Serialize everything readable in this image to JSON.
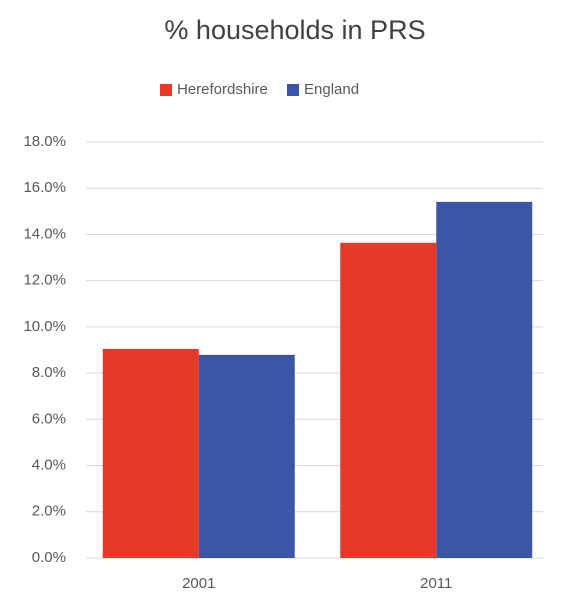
{
  "chart_data": {
    "type": "bar",
    "title": "% households in PRS",
    "categories": [
      "2001",
      "2011"
    ],
    "series": [
      {
        "name": "Herefordshire",
        "color": "#e53a27",
        "values": [
          9.05,
          13.64
        ]
      },
      {
        "name": "England",
        "color": "#3c56a6",
        "values": [
          8.79,
          15.41
        ]
      }
    ],
    "ylim": [
      0,
      18
    ],
    "yticks": [
      {
        "value": 0,
        "label": "0.0%"
      },
      {
        "value": 2,
        "label": "2.0%"
      },
      {
        "value": 4,
        "label": "4.0%"
      },
      {
        "value": 6,
        "label": "6.0%"
      },
      {
        "value": 8,
        "label": "8.0%"
      },
      {
        "value": 10,
        "label": "10.0%"
      },
      {
        "value": 12,
        "label": "12.0%"
      },
      {
        "value": 14,
        "label": "14.0%"
      },
      {
        "value": 16,
        "label": "16.0%"
      },
      {
        "value": 18,
        "label": "18.0%"
      }
    ],
    "grid": true,
    "legend": "top"
  }
}
